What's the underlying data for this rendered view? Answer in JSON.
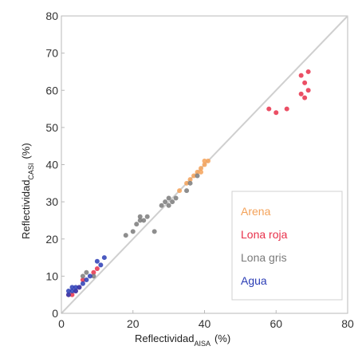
{
  "chart_data": {
    "type": "scatter",
    "xlabel": {
      "main": "Reflectividad",
      "sub": "AISA",
      "unit": "(%)"
    },
    "ylabel": {
      "main": "Reflectividad",
      "sub": "CASI",
      "unit": "(%)"
    },
    "xlim": [
      0,
      80
    ],
    "ylim": [
      0,
      80
    ],
    "xticks": [
      0,
      20,
      40,
      60,
      80
    ],
    "yticks": [
      0,
      10,
      20,
      30,
      40,
      50,
      60,
      70,
      80
    ],
    "grid": false,
    "legend_position": "bottom-right",
    "reference_line": {
      "type": "1:1",
      "color": "#cfcfcf"
    },
    "series": [
      {
        "name": "Arena",
        "color": "#f4a259",
        "points": [
          [
            33,
            33
          ],
          [
            35,
            35
          ],
          [
            36,
            36
          ],
          [
            37,
            37
          ],
          [
            38,
            38
          ],
          [
            39,
            39
          ],
          [
            40,
            40
          ],
          [
            40,
            41
          ],
          [
            41,
            41
          ],
          [
            39,
            38
          ]
        ]
      },
      {
        "name": "Lona roja",
        "color": "#e8304a",
        "points": [
          [
            2,
            5
          ],
          [
            3,
            5
          ],
          [
            4,
            6
          ],
          [
            5,
            7
          ],
          [
            6,
            9
          ],
          [
            9,
            11
          ],
          [
            10,
            12
          ],
          [
            58,
            55
          ],
          [
            60,
            54
          ],
          [
            63,
            55
          ],
          [
            67,
            59
          ],
          [
            68,
            58
          ],
          [
            69,
            60
          ],
          [
            68,
            62
          ],
          [
            67,
            64
          ],
          [
            69,
            65
          ]
        ]
      },
      {
        "name": "Lona gris",
        "color": "#7a7a7a",
        "points": [
          [
            6,
            10
          ],
          [
            7,
            11
          ],
          [
            9,
            10
          ],
          [
            18,
            21
          ],
          [
            20,
            22
          ],
          [
            21,
            24
          ],
          [
            22,
            25
          ],
          [
            22,
            26
          ],
          [
            23,
            25
          ],
          [
            24,
            26
          ],
          [
            26,
            22
          ],
          [
            28,
            29
          ],
          [
            29,
            30
          ],
          [
            30,
            31
          ],
          [
            30,
            29
          ],
          [
            31,
            30
          ],
          [
            32,
            31
          ],
          [
            35,
            33
          ],
          [
            36,
            35
          ],
          [
            38,
            37
          ]
        ]
      },
      {
        "name": "Agua",
        "color": "#2a3cb5",
        "points": [
          [
            2,
            6
          ],
          [
            2,
            5
          ],
          [
            3,
            6
          ],
          [
            3,
            7
          ],
          [
            4,
            7
          ],
          [
            4,
            6
          ],
          [
            5,
            7
          ],
          [
            6,
            8
          ],
          [
            7,
            9
          ],
          [
            8,
            10
          ],
          [
            10,
            14
          ],
          [
            11,
            13
          ],
          [
            12,
            15
          ]
        ]
      }
    ]
  }
}
